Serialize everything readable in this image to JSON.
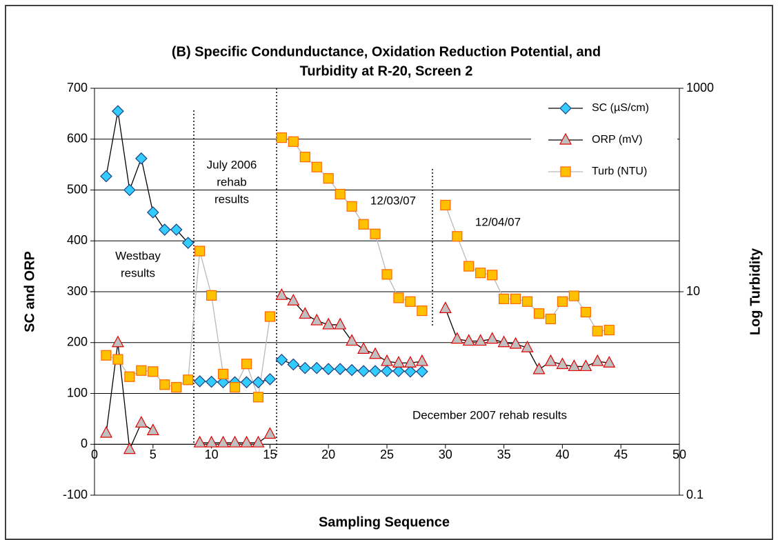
{
  "chart_data": {
    "type": "line",
    "title": [
      "(B)    Specific Condunductance, Oxidation Reduction Potential, and",
      "Turbidity at R-20, Screen 2"
    ],
    "x_label": "Sampling Sequence",
    "y_label": "SC and ORP",
    "y2_label": "Log Turbidity",
    "xlim": [
      0,
      50
    ],
    "xticks": [
      0,
      5,
      10,
      15,
      20,
      25,
      30,
      35,
      40,
      45,
      50
    ],
    "ylim": [
      -100,
      700
    ],
    "yticks": [
      -100,
      0,
      100,
      200,
      300,
      400,
      500,
      600,
      700
    ],
    "y2lim": [
      0.1,
      1000
    ],
    "y2ticks": [
      0.1,
      10,
      1000
    ],
    "y2log": true,
    "grid": true,
    "legend": "upper right",
    "annotations": [
      [
        "Westbay",
        "results"
      ],
      [
        "July 2006",
        "rehab",
        "results"
      ],
      [
        "12/03/07"
      ],
      [
        "12/04/07"
      ],
      [
        "December 2007 rehab results"
      ]
    ],
    "series": [
      {
        "name": "SC (µS/cm)",
        "marker": "diamond",
        "color": "#33ccff",
        "edge_color": "#1f3f7f",
        "line_color": "#000000",
        "x": [
          1,
          2,
          3,
          4,
          5,
          6,
          7,
          8,
          null,
          9,
          10,
          11,
          12,
          13,
          14,
          15,
          null,
          16,
          17,
          18,
          19,
          20,
          21,
          22,
          23,
          24,
          25,
          26,
          27,
          28
        ],
        "values": [
          527,
          655,
          500,
          562,
          456,
          422,
          422,
          396,
          null,
          124,
          123,
          122,
          122,
          122,
          122,
          128,
          null,
          166,
          157,
          150,
          150,
          148,
          148,
          146,
          144,
          144,
          144,
          144,
          143,
          143
        ]
      },
      {
        "name": "ORP (mV)",
        "marker": "triangle",
        "color": "#c0c0c0",
        "edge_color": "#e00000",
        "line_color": "#000000",
        "x": [
          1,
          2,
          3,
          4,
          5,
          null,
          9,
          10,
          11,
          12,
          13,
          14,
          15,
          null,
          16,
          17,
          18,
          19,
          20,
          21,
          22,
          23,
          24,
          25,
          26,
          27,
          28,
          null,
          30,
          31,
          32,
          33,
          34,
          35,
          36,
          37,
          38,
          39,
          40,
          41,
          42,
          43,
          44
        ],
        "values": [
          22,
          200,
          -10,
          42,
          27,
          null,
          3,
          3,
          3,
          3,
          3,
          3,
          20,
          null,
          293,
          282,
          256,
          243,
          235,
          235,
          203,
          187,
          177,
          163,
          160,
          160,
          163,
          null,
          267,
          207,
          203,
          203,
          207,
          200,
          197,
          190,
          147,
          163,
          157,
          153,
          153,
          163,
          160
        ]
      },
      {
        "name": "Turb (NTU)",
        "marker": "square",
        "color": "#ffc000",
        "edge_color": "#ff6600",
        "line_color": "#b8b8b8",
        "axis": "y2",
        "x": [
          1,
          2,
          3,
          4,
          5,
          6,
          7,
          8,
          9,
          10,
          11,
          12,
          13,
          14,
          15,
          null,
          16,
          17,
          18,
          19,
          20,
          21,
          22,
          23,
          24,
          25,
          26,
          27,
          28,
          null,
          30,
          31,
          32,
          33,
          34,
          35,
          36,
          37,
          38,
          39,
          40,
          41,
          42,
          43,
          44
        ],
        "values": [
          2.37,
          2.16,
          1.46,
          1.68,
          1.64,
          1.22,
          1.15,
          1.36,
          25.1,
          9.2,
          1.55,
          1.15,
          1.95,
          0.92,
          5.7,
          null,
          327,
          299,
          211,
          168,
          130,
          91,
          69,
          46,
          37,
          14.8,
          8.7,
          8.0,
          6.5,
          null,
          71,
          35,
          17.8,
          15.3,
          14.6,
          8.5,
          8.5,
          8.0,
          6.1,
          5.4,
          8.0,
          9.1,
          6.3,
          4.1,
          4.2
        ]
      }
    ]
  }
}
